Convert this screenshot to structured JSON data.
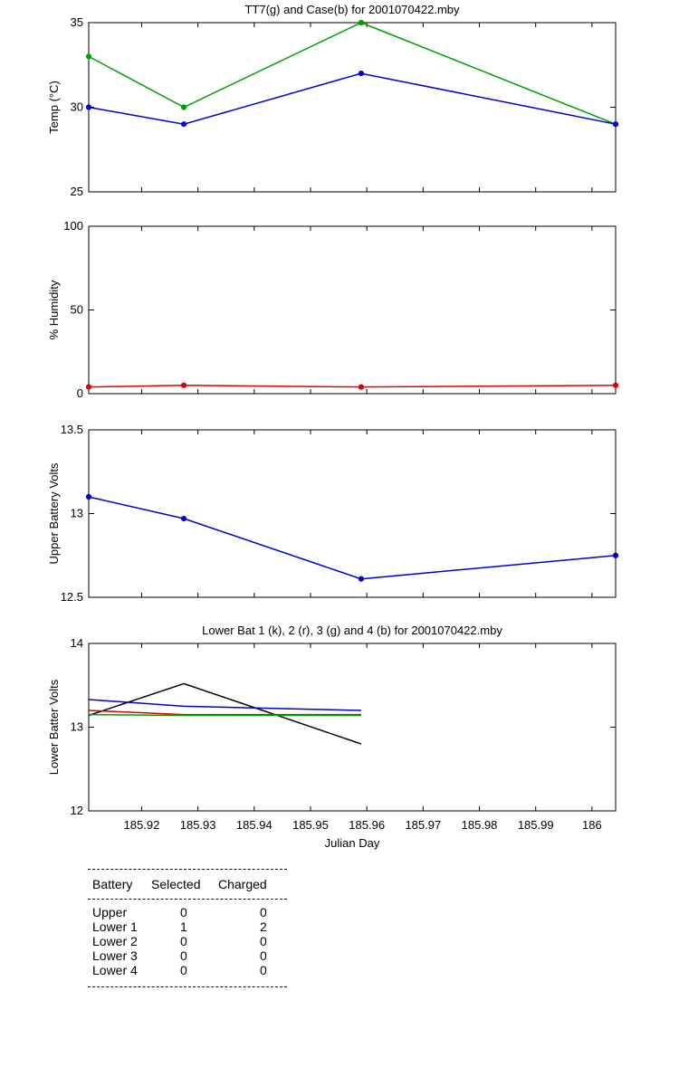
{
  "colors": {
    "green": "#00a000",
    "blue": "#0000d0",
    "red": "#e00000",
    "black": "#000000"
  },
  "chart_data": [
    {
      "type": "line",
      "title": "TT7(g) and Case(b) for 2001070422.mby",
      "xlabel": "",
      "ylabel": "Temp  (°C)",
      "xlim": [
        185.9106,
        186.0042
      ],
      "ylim": [
        25,
        35
      ],
      "yticks": [
        25,
        30,
        35
      ],
      "ytick_labels": [
        "25",
        "30",
        "35"
      ],
      "series": [
        {
          "name": "TT7",
          "color": "green",
          "markers": true,
          "x": [
            185.9106,
            185.9275,
            185.959,
            186.0042
          ],
          "y": [
            33,
            30,
            35,
            29
          ]
        },
        {
          "name": "Case",
          "color": "blue",
          "markers": true,
          "x": [
            185.9106,
            185.9275,
            185.959,
            186.0042
          ],
          "y": [
            30,
            29,
            32,
            29
          ]
        }
      ]
    },
    {
      "type": "line",
      "title": "",
      "xlabel": "",
      "ylabel": "% Humidity",
      "xlim": [
        185.9106,
        186.0042
      ],
      "ylim": [
        0,
        100
      ],
      "yticks": [
        0,
        50,
        100
      ],
      "ytick_labels": [
        "0",
        "50",
        "100"
      ],
      "series": [
        {
          "name": "Humidity",
          "color": "red",
          "markers": true,
          "x": [
            185.9106,
            185.9275,
            185.959,
            186.0042
          ],
          "y": [
            4,
            5,
            4,
            5
          ]
        }
      ]
    },
    {
      "type": "line",
      "title": "",
      "xlabel": "",
      "ylabel": "Upper Battery Volts",
      "xlim": [
        185.9106,
        186.0042
      ],
      "ylim": [
        12.5,
        13.5
      ],
      "yticks": [
        12.5,
        13,
        13.5
      ],
      "ytick_labels": [
        "12.5",
        "13",
        "13.5"
      ],
      "series": [
        {
          "name": "Upper",
          "color": "blue",
          "markers": true,
          "x": [
            185.9106,
            185.9275,
            185.959,
            186.0042
          ],
          "y": [
            13.1,
            12.97,
            12.61,
            12.75
          ]
        }
      ]
    },
    {
      "type": "line",
      "title": "Lower Bat 1 (k), 2 (r), 3 (g) and 4 (b) for 2001070422.mby",
      "xlabel": "Julian Day",
      "ylabel": "Lower Batter Volts",
      "xlim": [
        185.9106,
        186.0042
      ],
      "ylim": [
        12,
        14
      ],
      "yticks": [
        12,
        13,
        14
      ],
      "ytick_labels": [
        "12",
        "13",
        "14"
      ],
      "xticks": [
        185.92,
        185.93,
        185.94,
        185.95,
        185.96,
        185.97,
        185.98,
        185.99,
        186
      ],
      "xtick_labels": [
        "185.92",
        "185.93",
        "185.94",
        "185.95",
        "185.96",
        "185.97",
        "185.98",
        "185.99",
        "186"
      ],
      "series": [
        {
          "name": "Lower 1",
          "color": "black",
          "markers": false,
          "x": [
            185.9106,
            185.9275,
            185.959
          ],
          "y": [
            13.14,
            13.52,
            12.8
          ]
        },
        {
          "name": "Lower 2",
          "color": "red",
          "markers": false,
          "x": [
            185.9106,
            185.9275,
            185.959
          ],
          "y": [
            13.2,
            13.15,
            13.15
          ]
        },
        {
          "name": "Lower 3",
          "color": "green",
          "markers": false,
          "x": [
            185.9106,
            185.9275,
            185.959
          ],
          "y": [
            13.15,
            13.14,
            13.14
          ]
        },
        {
          "name": "Lower 4",
          "color": "blue",
          "markers": false,
          "x": [
            185.9106,
            185.9275,
            185.959
          ],
          "y": [
            13.33,
            13.25,
            13.2
          ]
        }
      ]
    }
  ],
  "table": {
    "headers": [
      "Battery",
      "Selected",
      "Charged"
    ],
    "rows": [
      {
        "battery": "Upper",
        "selected": "0",
        "charged": "0"
      },
      {
        "battery": "Lower 1",
        "selected": "1",
        "charged": "2"
      },
      {
        "battery": "Lower 2",
        "selected": "0",
        "charged": "0"
      },
      {
        "battery": "Lower 3",
        "selected": "0",
        "charged": "0"
      },
      {
        "battery": "Lower 4",
        "selected": "0",
        "charged": "0"
      }
    ]
  }
}
